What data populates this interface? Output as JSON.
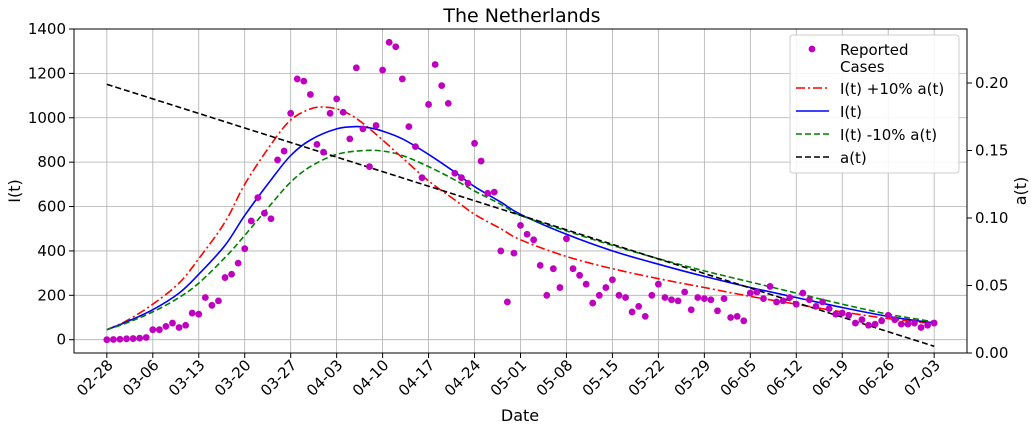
{
  "chart_data": {
    "type": "line",
    "title": "The Netherlands",
    "xlabel": "Date",
    "ylabel": "I(t)",
    "y2label": "a(t)",
    "grid": true,
    "legend_position": "top-right",
    "x_start_date": "2020-02-28",
    "x_end_date": "2020-07-03",
    "xlim": [
      "2020-02-23",
      "2020-07-08"
    ],
    "ylim": [
      -60,
      1400
    ],
    "y2lim": [
      0.0,
      0.24
    ],
    "x_tick_labels": [
      "02-28",
      "03-06",
      "03-13",
      "03-20",
      "03-27",
      "04-03",
      "04-10",
      "04-17",
      "04-24",
      "05-01",
      "05-08",
      "05-15",
      "05-22",
      "05-29",
      "06-05",
      "06-12",
      "06-19",
      "06-26",
      "07-03"
    ],
    "y_ticks": [
      0,
      200,
      400,
      600,
      800,
      1000,
      1200,
      1400
    ],
    "y2_ticks": [
      0.0,
      0.05,
      0.1,
      0.15,
      0.2
    ],
    "y2_tick_labels": [
      "0.00",
      "0.05",
      "0.10",
      "0.15",
      "0.20"
    ],
    "reported_cases": [
      {
        "x": "2020-02-28",
        "y": 0
      },
      {
        "x": "2020-02-29",
        "y": 1
      },
      {
        "x": "2020-03-01",
        "y": 2
      },
      {
        "x": "2020-03-02",
        "y": 4
      },
      {
        "x": "2020-03-03",
        "y": 5
      },
      {
        "x": "2020-03-04",
        "y": 7
      },
      {
        "x": "2020-03-05",
        "y": 10
      },
      {
        "x": "2020-03-06",
        "y": 45
      },
      {
        "x": "2020-03-07",
        "y": 45
      },
      {
        "x": "2020-03-08",
        "y": 60
      },
      {
        "x": "2020-03-09",
        "y": 75
      },
      {
        "x": "2020-03-10",
        "y": 55
      },
      {
        "x": "2020-03-11",
        "y": 65
      },
      {
        "x": "2020-03-12",
        "y": 120
      },
      {
        "x": "2020-03-13",
        "y": 115
      },
      {
        "x": "2020-03-14",
        "y": 190
      },
      {
        "x": "2020-03-15",
        "y": 155
      },
      {
        "x": "2020-03-16",
        "y": 175
      },
      {
        "x": "2020-03-17",
        "y": 280
      },
      {
        "x": "2020-03-18",
        "y": 295
      },
      {
        "x": "2020-03-19",
        "y": 345
      },
      {
        "x": "2020-03-20",
        "y": 410
      },
      {
        "x": "2020-03-21",
        "y": 535
      },
      {
        "x": "2020-03-22",
        "y": 640
      },
      {
        "x": "2020-03-23",
        "y": 570
      },
      {
        "x": "2020-03-24",
        "y": 545
      },
      {
        "x": "2020-03-25",
        "y": 810
      },
      {
        "x": "2020-03-26",
        "y": 850
      },
      {
        "x": "2020-03-27",
        "y": 1020
      },
      {
        "x": "2020-03-28",
        "y": 1175
      },
      {
        "x": "2020-03-29",
        "y": 1165
      },
      {
        "x": "2020-03-30",
        "y": 1105
      },
      {
        "x": "2020-03-31",
        "y": 880
      },
      {
        "x": "2020-04-01",
        "y": 845
      },
      {
        "x": "2020-04-02",
        "y": 1020
      },
      {
        "x": "2020-04-03",
        "y": 1085
      },
      {
        "x": "2020-04-04",
        "y": 1025
      },
      {
        "x": "2020-04-05",
        "y": 905
      },
      {
        "x": "2020-04-06",
        "y": 1225
      },
      {
        "x": "2020-04-07",
        "y": 950
      },
      {
        "x": "2020-04-08",
        "y": 780
      },
      {
        "x": "2020-04-09",
        "y": 965
      },
      {
        "x": "2020-04-10",
        "y": 1215
      },
      {
        "x": "2020-04-11",
        "y": 1340
      },
      {
        "x": "2020-04-12",
        "y": 1320
      },
      {
        "x": "2020-04-13",
        "y": 1175
      },
      {
        "x": "2020-04-14",
        "y": 960
      },
      {
        "x": "2020-04-15",
        "y": 870
      },
      {
        "x": "2020-04-16",
        "y": 730
      },
      {
        "x": "2020-04-17",
        "y": 1060
      },
      {
        "x": "2020-04-18",
        "y": 1240
      },
      {
        "x": "2020-04-19",
        "y": 1145
      },
      {
        "x": "2020-04-20",
        "y": 1065
      },
      {
        "x": "2020-04-21",
        "y": 750
      },
      {
        "x": "2020-04-22",
        "y": 730
      },
      {
        "x": "2020-04-23",
        "y": 705
      },
      {
        "x": "2020-04-24",
        "y": 885
      },
      {
        "x": "2020-04-25",
        "y": 805
      },
      {
        "x": "2020-04-26",
        "y": 660
      },
      {
        "x": "2020-04-27",
        "y": 665
      },
      {
        "x": "2020-04-28",
        "y": 400
      },
      {
        "x": "2020-04-29",
        "y": 170
      },
      {
        "x": "2020-04-30",
        "y": 390
      },
      {
        "x": "2020-05-01",
        "y": 515
      },
      {
        "x": "2020-05-02",
        "y": 475
      },
      {
        "x": "2020-05-03",
        "y": 450
      },
      {
        "x": "2020-05-04",
        "y": 335
      },
      {
        "x": "2020-05-05",
        "y": 200
      },
      {
        "x": "2020-05-06",
        "y": 320
      },
      {
        "x": "2020-05-07",
        "y": 235
      },
      {
        "x": "2020-05-08",
        "y": 455
      },
      {
        "x": "2020-05-09",
        "y": 320
      },
      {
        "x": "2020-05-10",
        "y": 290
      },
      {
        "x": "2020-05-11",
        "y": 250
      },
      {
        "x": "2020-05-12",
        "y": 165
      },
      {
        "x": "2020-05-13",
        "y": 200
      },
      {
        "x": "2020-05-14",
        "y": 235
      },
      {
        "x": "2020-05-15",
        "y": 270
      },
      {
        "x": "2020-05-16",
        "y": 200
      },
      {
        "x": "2020-05-17",
        "y": 190
      },
      {
        "x": "2020-05-18",
        "y": 125
      },
      {
        "x": "2020-05-19",
        "y": 150
      },
      {
        "x": "2020-05-20",
        "y": 105
      },
      {
        "x": "2020-05-21",
        "y": 200
      },
      {
        "x": "2020-05-22",
        "y": 250
      },
      {
        "x": "2020-05-23",
        "y": 190
      },
      {
        "x": "2020-05-24",
        "y": 180
      },
      {
        "x": "2020-05-25",
        "y": 175
      },
      {
        "x": "2020-05-26",
        "y": 215
      },
      {
        "x": "2020-05-27",
        "y": 135
      },
      {
        "x": "2020-05-28",
        "y": 190
      },
      {
        "x": "2020-05-29",
        "y": 185
      },
      {
        "x": "2020-05-30",
        "y": 180
      },
      {
        "x": "2020-05-31",
        "y": 130
      },
      {
        "x": "2020-06-01",
        "y": 185
      },
      {
        "x": "2020-06-02",
        "y": 100
      },
      {
        "x": "2020-06-03",
        "y": 105
      },
      {
        "x": "2020-06-04",
        "y": 85
      },
      {
        "x": "2020-06-05",
        "y": 210
      },
      {
        "x": "2020-06-06",
        "y": 215
      },
      {
        "x": "2020-06-07",
        "y": 185
      },
      {
        "x": "2020-06-08",
        "y": 240
      },
      {
        "x": "2020-06-09",
        "y": 170
      },
      {
        "x": "2020-06-10",
        "y": 175
      },
      {
        "x": "2020-06-11",
        "y": 190
      },
      {
        "x": "2020-06-12",
        "y": 160
      },
      {
        "x": "2020-06-13",
        "y": 210
      },
      {
        "x": "2020-06-14",
        "y": 180
      },
      {
        "x": "2020-06-15",
        "y": 150
      },
      {
        "x": "2020-06-16",
        "y": 170
      },
      {
        "x": "2020-06-17",
        "y": 140
      },
      {
        "x": "2020-06-18",
        "y": 115
      },
      {
        "x": "2020-06-19",
        "y": 120
      },
      {
        "x": "2020-06-20",
        "y": 110
      },
      {
        "x": "2020-06-21",
        "y": 75
      },
      {
        "x": "2020-06-22",
        "y": 90
      },
      {
        "x": "2020-06-23",
        "y": 65
      },
      {
        "x": "2020-06-24",
        "y": 70
      },
      {
        "x": "2020-06-25",
        "y": 85
      },
      {
        "x": "2020-06-26",
        "y": 110
      },
      {
        "x": "2020-06-27",
        "y": 90
      },
      {
        "x": "2020-06-28",
        "y": 70
      },
      {
        "x": "2020-06-29",
        "y": 70
      },
      {
        "x": "2020-06-30",
        "y": 75
      },
      {
        "x": "2020-07-01",
        "y": 55
      },
      {
        "x": "2020-07-02",
        "y": 65
      },
      {
        "x": "2020-07-03",
        "y": 75
      }
    ],
    "series": [
      {
        "name": "I(t) +10% a(t)",
        "color": "#ff0000",
        "dash": "dashdot",
        "axis": "left",
        "x": [
          "2020-02-28",
          "2020-03-02",
          "2020-03-06",
          "2020-03-10",
          "2020-03-13",
          "2020-03-17",
          "2020-03-20",
          "2020-03-24",
          "2020-03-27",
          "2020-03-30",
          "2020-04-01",
          "2020-04-03",
          "2020-04-05",
          "2020-04-07",
          "2020-04-10",
          "2020-04-13",
          "2020-04-17",
          "2020-04-21",
          "2020-04-24",
          "2020-04-28",
          "2020-05-01",
          "2020-05-08",
          "2020-05-15",
          "2020-05-22",
          "2020-05-29",
          "2020-06-05",
          "2020-06-12",
          "2020-06-19",
          "2020-06-26",
          "2020-07-03"
        ],
        "y": [
          45,
          85,
          160,
          255,
          365,
          530,
          700,
          880,
          990,
          1040,
          1048,
          1040,
          1015,
          975,
          900,
          820,
          715,
          630,
          565,
          500,
          450,
          375,
          320,
          275,
          235,
          195,
          160,
          125,
          95,
          72
        ]
      },
      {
        "name": "I(t)",
        "color": "#0000ff",
        "dash": "solid",
        "axis": "left",
        "x": [
          "2020-02-28",
          "2020-03-02",
          "2020-03-06",
          "2020-03-10",
          "2020-03-13",
          "2020-03-17",
          "2020-03-20",
          "2020-03-24",
          "2020-03-27",
          "2020-03-30",
          "2020-04-03",
          "2020-04-06",
          "2020-04-08",
          "2020-04-10",
          "2020-04-13",
          "2020-04-17",
          "2020-04-21",
          "2020-04-24",
          "2020-04-28",
          "2020-05-01",
          "2020-05-08",
          "2020-05-15",
          "2020-05-22",
          "2020-05-29",
          "2020-06-05",
          "2020-06-12",
          "2020-06-19",
          "2020-06-26",
          "2020-07-03"
        ],
        "y": [
          45,
          80,
          135,
          210,
          295,
          425,
          560,
          720,
          830,
          900,
          950,
          960,
          955,
          940,
          905,
          835,
          755,
          690,
          620,
          565,
          475,
          400,
          340,
          285,
          235,
          190,
          145,
          105,
          75
        ]
      },
      {
        "name": "I(t) -10% a(t)",
        "color": "#008000",
        "dash": "dashed",
        "axis": "left",
        "x": [
          "2020-02-28",
          "2020-03-02",
          "2020-03-06",
          "2020-03-10",
          "2020-03-13",
          "2020-03-17",
          "2020-03-20",
          "2020-03-24",
          "2020-03-27",
          "2020-03-30",
          "2020-04-03",
          "2020-04-07",
          "2020-04-10",
          "2020-04-13",
          "2020-04-17",
          "2020-04-21",
          "2020-04-24",
          "2020-04-28",
          "2020-05-01",
          "2020-05-08",
          "2020-05-15",
          "2020-05-22",
          "2020-05-29",
          "2020-06-05",
          "2020-06-12",
          "2020-06-19",
          "2020-06-26",
          "2020-07-03"
        ],
        "y": [
          45,
          75,
          125,
          190,
          255,
          370,
          470,
          610,
          710,
          780,
          835,
          852,
          850,
          830,
          780,
          720,
          670,
          610,
          560,
          490,
          425,
          365,
          310,
          260,
          210,
          160,
          115,
          80
        ]
      },
      {
        "name": "a(t)",
        "color": "#000000",
        "dash": "dashed",
        "axis": "right",
        "x": [
          "2020-02-28",
          "2020-07-03"
        ],
        "y": [
          0.199,
          0.005
        ]
      }
    ],
    "legend": [
      {
        "label": "Reported\nCases",
        "kind": "marker",
        "color": "#c000c0"
      },
      {
        "label": "I(t) +10% a(t)",
        "kind": "line",
        "color": "#ff0000",
        "dash": "dashdot"
      },
      {
        "label": "I(t)",
        "kind": "line",
        "color": "#0000ff",
        "dash": "solid"
      },
      {
        "label": "I(t) -10% a(t)",
        "kind": "line",
        "color": "#008000",
        "dash": "dashed"
      },
      {
        "label": "a(t)",
        "kind": "line",
        "color": "#000000",
        "dash": "dashed"
      }
    ],
    "marker_color": "#c000c0"
  }
}
